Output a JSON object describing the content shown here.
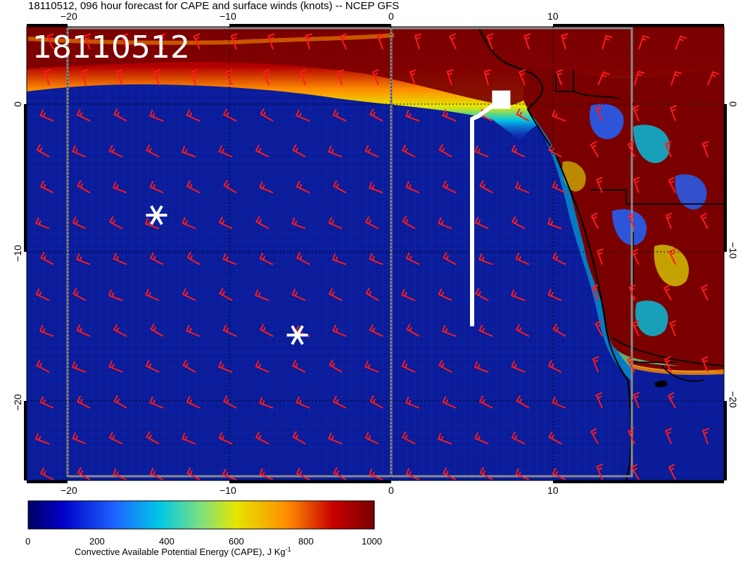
{
  "title": "18110512, 096 hour forecast for CAPE and surface winds (knots) -- NCEP GFS",
  "timestamp_label": "18110512",
  "axes": {
    "lon_ticks": [
      "−20",
      "−10",
      "0",
      "10"
    ],
    "lat_ticks": [
      "0",
      "−10",
      "−20"
    ]
  },
  "colorbar": {
    "tick_labels": [
      "0",
      "200",
      "400",
      "600",
      "800",
      "1000"
    ],
    "label_main": "Convective Available Potential Energy (CAPE), J Kg",
    "label_sup": "-1",
    "colors": [
      "#000066",
      "#0000c8",
      "#1e64ff",
      "#00c8e6",
      "#7fe07f",
      "#e6e600",
      "#ff8c00",
      "#c80000",
      "#780000"
    ]
  },
  "map": {
    "ocean_color": "#0a1c9a",
    "land_high_cape_color": "#7a0000",
    "wind_barb_color": "#ff1a1a",
    "marker_color": "#ffffff",
    "storm_markers": [
      {
        "name": "storm-marker-west",
        "lon": -14.5,
        "lat": -7.5
      },
      {
        "name": "storm-marker-south",
        "lon": -5.8,
        "lat": -15.6
      }
    ],
    "track": [
      {
        "lon": 6.8,
        "lat": 0.3
      },
      {
        "lon": 5.4,
        "lat": -0.8
      },
      {
        "lon": 5.0,
        "lat": -1.0
      },
      {
        "lon": 5.0,
        "lat": -15.0
      }
    ]
  }
}
